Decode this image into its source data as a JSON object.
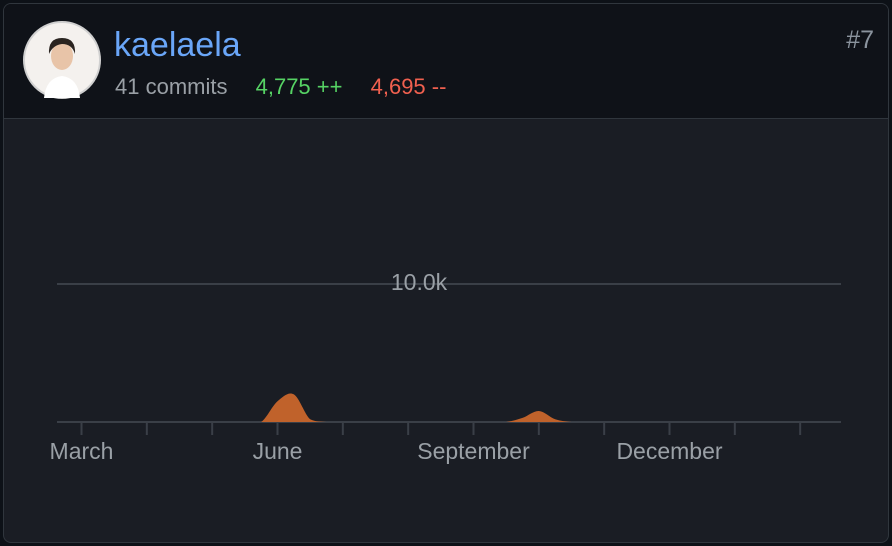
{
  "header": {
    "username": "kaelaela",
    "commits": "41 commits",
    "additions": "4,775 ++",
    "deletions": "4,695 --",
    "rank": "#7"
  },
  "chart_data": {
    "type": "area",
    "color": "#c0622b",
    "categories": [
      null,
      "March",
      null,
      null,
      null,
      null,
      null,
      null,
      null,
      null,
      null,
      null,
      null,
      "June",
      null,
      null,
      null,
      null,
      null,
      null,
      null,
      null,
      null,
      null,
      null,
      "September",
      null,
      null,
      null,
      null,
      null,
      null,
      null,
      null,
      null,
      null,
      null,
      "December",
      null,
      null,
      null,
      null,
      null,
      null,
      null,
      null,
      null,
      null
    ],
    "values": [
      0,
      0,
      0,
      0,
      0,
      0,
      0,
      0,
      0,
      0,
      0,
      0,
      0,
      1500,
      2000,
      200,
      0,
      0,
      0,
      0,
      0,
      0,
      0,
      0,
      0,
      0,
      0,
      0,
      300,
      800,
      200,
      0,
      0,
      0,
      0,
      0,
      0,
      0,
      0,
      0,
      0,
      0,
      0,
      0,
      0,
      0,
      0,
      0
    ],
    "ylim": [
      0,
      20000
    ],
    "yticks": [
      {
        "value": 10000,
        "label": "10.0k"
      }
    ],
    "grid": true
  }
}
